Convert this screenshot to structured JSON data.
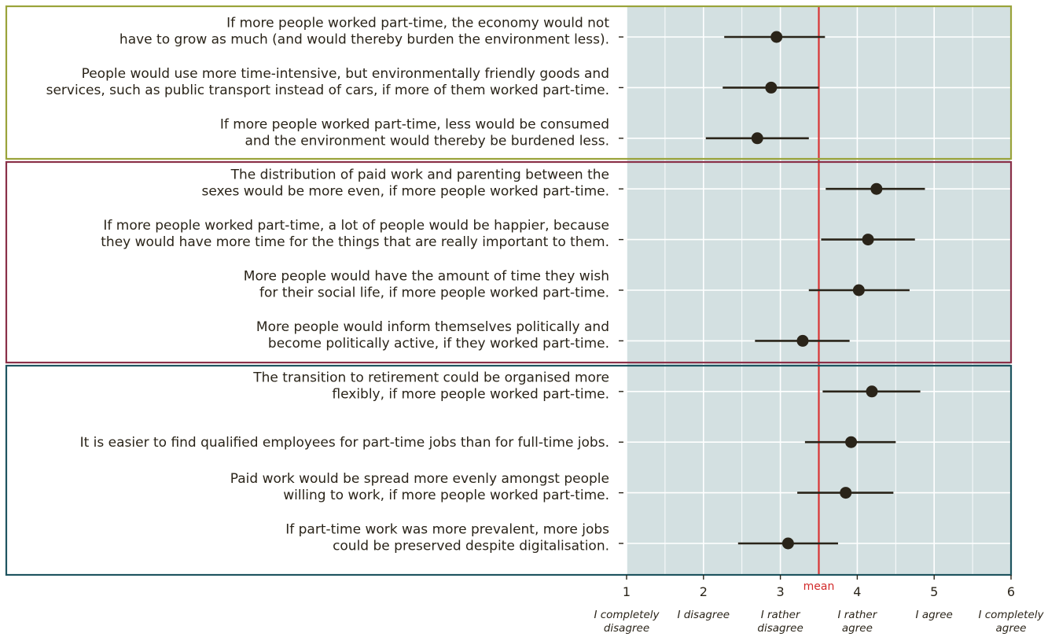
{
  "chart_data": {
    "type": "scatter",
    "subtype": "dot-and-whisker",
    "title": "",
    "xlabel": "",
    "ylabel": "",
    "xlim": [
      1,
      6
    ],
    "x_ticks": [
      1,
      2,
      3,
      4,
      5,
      6
    ],
    "x_tick_labels": [
      "1",
      "2",
      "3",
      "4",
      "5",
      "6"
    ],
    "scale_labels": [
      [
        "I completely",
        "disagree"
      ],
      [
        "I disagree"
      ],
      [
        "I rather",
        "disagree"
      ],
      [
        "I rather",
        "agree"
      ],
      [
        "I agree"
      ],
      [
        "I completely",
        "agree"
      ]
    ],
    "mean": {
      "label": "mean",
      "value": 3.5,
      "color": "#d93434"
    },
    "grid": true,
    "colors": {
      "panel_bg": "#d3e0e1",
      "grid": "#ffffff",
      "point": "#2a2419",
      "group_borders": [
        "#9aa33a",
        "#8a3048",
        "#1f5560"
      ]
    },
    "groups": [
      {
        "items": [
          {
            "label": [
              "If more people worked part-time, the economy would not",
              "have to grow as much (and would thereby burden the environment less)."
            ],
            "mean": 2.95,
            "low": 2.27,
            "high": 3.58
          },
          {
            "label": [
              "People would use more time-intensive, but environmentally friendly goods and",
              "services, such as public transport instead of cars, if more of them worked part-time."
            ],
            "mean": 2.88,
            "low": 2.25,
            "high": 3.5
          },
          {
            "label": [
              "If more people worked part-time, less would be consumed",
              "and the environment would thereby be burdened less."
            ],
            "mean": 2.7,
            "low": 2.03,
            "high": 3.37
          }
        ]
      },
      {
        "items": [
          {
            "label": [
              "The distribution of paid work and parenting between the",
              "sexes would be more even, if more people worked part-time."
            ],
            "mean": 4.25,
            "low": 3.59,
            "high": 4.88
          },
          {
            "label": [
              "If more people worked part-time, a lot of people would be happier, because",
              "they would have more time for the things that are really important to them."
            ],
            "mean": 4.14,
            "low": 3.53,
            "high": 4.75
          },
          {
            "label": [
              "More people would have the amount of time they wish",
              "for their social life, if more people worked part-time."
            ],
            "mean": 4.02,
            "low": 3.37,
            "high": 4.68
          },
          {
            "label": [
              "More people would inform themselves politically and",
              "become politically active, if they worked part-time."
            ],
            "mean": 3.29,
            "low": 2.67,
            "high": 3.9
          }
        ]
      },
      {
        "items": [
          {
            "label": [
              "The transition to retirement could be organised more",
              "flexibly, if more people worked part-time."
            ],
            "mean": 4.19,
            "low": 3.55,
            "high": 4.82
          },
          {
            "label": [
              "It is easier to find qualified employees for part-time jobs than for full-time jobs."
            ],
            "mean": 3.92,
            "low": 3.32,
            "high": 4.5
          },
          {
            "label": [
              "Paid work would be spread more evenly amongst people",
              "willing to work, if more people worked part-time."
            ],
            "mean": 3.85,
            "low": 3.22,
            "high": 4.47
          },
          {
            "label": [
              "If part-time work was more prevalent, more jobs",
              "could be preserved despite digitalisation."
            ],
            "mean": 3.1,
            "low": 2.45,
            "high": 3.75
          }
        ]
      }
    ]
  }
}
